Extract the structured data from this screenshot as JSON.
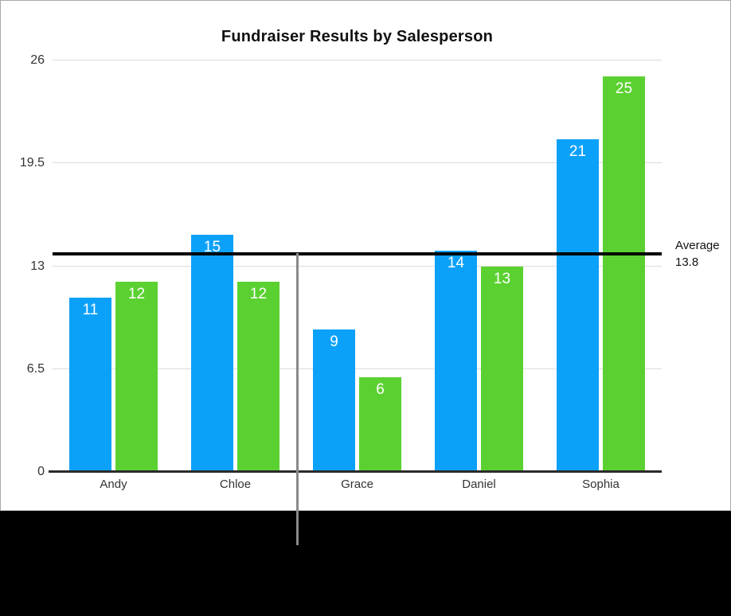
{
  "frame": {
    "background": "#ffffff",
    "border_color": "#a8a8a8",
    "bottom_bar_color": "#000000"
  },
  "chart_data": {
    "type": "bar",
    "title": "Fundraiser Results by Salesperson",
    "categories": [
      "Andy",
      "Chloe",
      "Grace",
      "Daniel",
      "Sophia"
    ],
    "series": [
      {
        "name": "blue",
        "color": "#0ca1f9",
        "values": [
          11,
          15,
          9,
          14,
          21
        ]
      },
      {
        "name": "green",
        "color": "#5bd131",
        "values": [
          12,
          12,
          6,
          13,
          25
        ]
      }
    ],
    "yticks": [
      "0",
      "6.5",
      "13",
      "19.5",
      "26"
    ],
    "ytick_values": [
      0,
      6.5,
      13,
      19.5,
      26
    ],
    "ylim": [
      0,
      26
    ],
    "grid": true,
    "legend": "none",
    "value_labels": "inside-top",
    "average_line": {
      "value": 13.8,
      "label": "Average",
      "value_label": "13.8",
      "color": "#000000"
    }
  },
  "colors": {
    "grid": "#dcdcdc",
    "axis": "#2b2b2b",
    "average_line": "#000000",
    "guide_line": "#8a8a8a",
    "value_label_text": "#ffffff",
    "tick_text": "#333333"
  }
}
